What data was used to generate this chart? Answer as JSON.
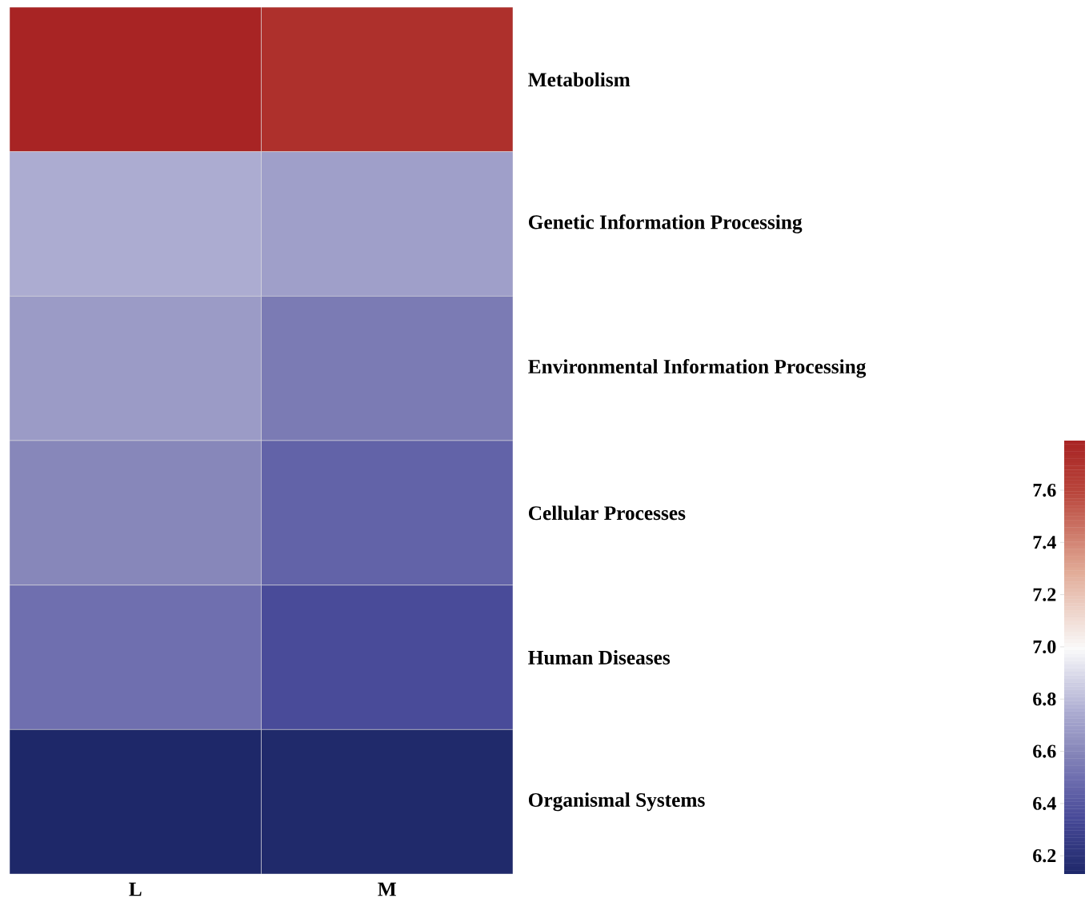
{
  "chart_data": {
    "type": "heatmap",
    "categories": [
      "L",
      "M"
    ],
    "y_categories": [
      "Metabolism",
      "Genetic Information Processing",
      "Environmental Information Processing",
      "Cellular Processes",
      "Human Diseases",
      "Organismal Systems"
    ],
    "cells": [
      [
        7.79,
        7.72
      ],
      [
        6.75,
        6.7
      ],
      [
        6.68,
        6.55
      ],
      [
        6.6,
        6.45
      ],
      [
        6.5,
        6.35
      ],
      [
        6.13,
        6.14
      ]
    ],
    "clim": [
      6.13,
      7.79
    ],
    "cticks": [
      6.2,
      6.4,
      6.6,
      6.8,
      {
        "value": 7,
        "label": "7.0"
      },
      7.2,
      7.4,
      7.6
    ]
  }
}
